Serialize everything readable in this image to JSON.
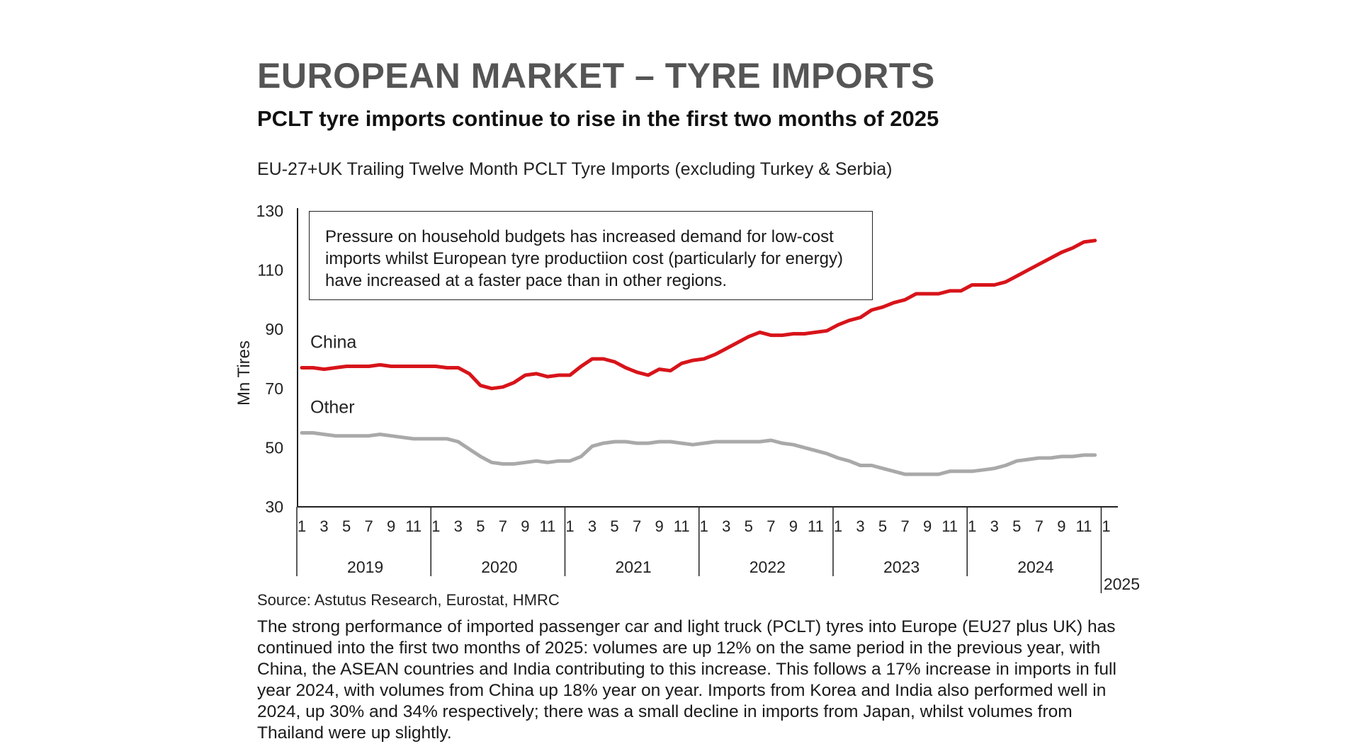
{
  "header": {
    "title": "EUROPEAN MARKET – TYRE IMPORTS",
    "subtitle": "PCLT tyre imports continue to rise in the first  two months of 2025"
  },
  "chart_caption": "EU-27+UK Trailing Twelve Month PCLT Tyre Imports (excluding Turkey & Serbia)",
  "annotation": "Pressure on household budgets has increased demand for low-cost imports whilst European tyre productiion cost (particularly for energy) have increased at a faster pace than in other regions.",
  "source": "Source: Astutus Research, Eurostat, HMRC",
  "body_text": "The strong performance of imported passenger car and light truck (PCLT) tyres into Europe (EU27 plus UK) has continued into the first two months of 2025: volumes are up 12% on the same period in the previous year, with China, the ASEAN countries and India contributing to this increase. This follows a 17% increase in imports in full year 2024, with volumes from China up 18% year on year. Imports from Korea and India also performed well in 2024, up 30% and 34% respectively; there was a small decline in imports from Japan, whilst volumes from Thailand were up slightly.",
  "chart_data": {
    "type": "line",
    "title": "EU-27+UK Trailing Twelve Month PCLT Tyre Imports (excluding Turkey & Serbia)",
    "xlabel": "",
    "ylabel": "Mn Tires",
    "ylim": [
      30,
      130
    ],
    "yticks": [
      30,
      50,
      70,
      90,
      110,
      130
    ],
    "x_tick_labels": [
      "1",
      "3",
      "5",
      "7",
      "9",
      "11"
    ],
    "years": [
      "2019",
      "2020",
      "2021",
      "2022",
      "2023",
      "2024",
      "2025"
    ],
    "months_per_year": 12,
    "last_year_tick_labels": [
      "1"
    ],
    "series": [
      {
        "name": "China",
        "color": "#d7141a",
        "values": [
          77,
          77,
          76.5,
          77,
          77.5,
          77.5,
          77.5,
          78,
          77.5,
          77.5,
          77.5,
          77.5,
          77.5,
          77,
          77,
          75,
          71,
          70,
          70.5,
          72,
          74.5,
          75,
          74,
          74.5,
          74.5,
          77.5,
          80,
          80,
          79,
          77,
          75.5,
          74.5,
          76.5,
          76,
          78.5,
          79.5,
          80,
          81.5,
          83.5,
          85.5,
          87.5,
          89,
          88,
          88,
          88.5,
          88.5,
          89,
          89.5,
          91.5,
          93,
          94,
          96.5,
          97.5,
          99,
          100,
          102,
          102,
          102,
          103,
          103,
          105,
          105,
          105,
          106,
          108,
          110,
          112,
          114,
          116,
          117.5,
          119.5,
          120
        ]
      },
      {
        "name": "Other",
        "color": "#a9a9a9",
        "values": [
          55,
          55,
          54.5,
          54,
          54,
          54,
          54,
          54.5,
          54,
          53.5,
          53,
          53,
          53,
          53,
          52,
          49.5,
          47,
          45,
          44.5,
          44.5,
          45,
          45.5,
          45,
          45.5,
          45.5,
          47,
          50.5,
          51.5,
          52,
          52,
          51.5,
          51.5,
          52,
          52,
          51.5,
          51,
          51.5,
          52,
          52,
          52,
          52,
          52,
          52.5,
          51.5,
          51,
          50,
          49,
          48,
          46.5,
          45.5,
          44,
          44,
          43,
          42,
          41,
          41,
          41,
          41,
          42,
          42,
          42,
          42.5,
          43,
          44,
          45.5,
          46,
          46.5,
          46.5,
          47,
          47,
          47.5,
          47.5
        ]
      }
    ]
  }
}
